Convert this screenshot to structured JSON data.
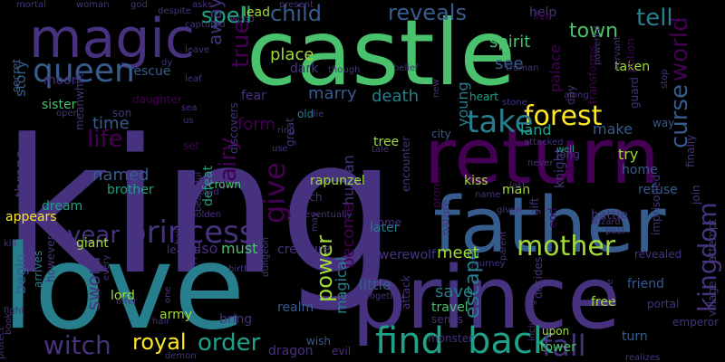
{
  "background": "#000000",
  "palette": {
    "dark_purple": "#440154",
    "indigo": "#46327e",
    "blue": "#365c8d",
    "steel": "#277f8e",
    "teal": "#1fa187",
    "green": "#4ac16d",
    "lime": "#a0da39",
    "yellow": "#fde725"
  },
  "words": [
    {
      "text": "king",
      "color": "indigo"
    },
    {
      "text": "castle",
      "color": "green"
    },
    {
      "text": "love",
      "color": "steel"
    },
    {
      "text": "prince",
      "color": "indigo"
    },
    {
      "text": "return",
      "color": "dark_purple"
    },
    {
      "text": "father",
      "color": "blue"
    },
    {
      "text": "magic",
      "color": "indigo"
    },
    {
      "text": "queen",
      "color": "blue"
    },
    {
      "text": "find",
      "color": "teal"
    },
    {
      "text": "back",
      "color": "teal"
    },
    {
      "text": "princess",
      "color": "indigo"
    },
    {
      "text": "forest",
      "color": "yellow"
    },
    {
      "text": "take",
      "color": "steel"
    },
    {
      "text": "mother",
      "color": "lime"
    },
    {
      "text": "kingdom",
      "color": "indigo"
    },
    {
      "text": "fall",
      "color": "indigo"
    },
    {
      "text": "witch",
      "color": "indigo"
    },
    {
      "text": "world",
      "color": "dark_purple"
    },
    {
      "text": "curse",
      "color": "blue"
    },
    {
      "text": "year",
      "color": "indigo"
    },
    {
      "text": "give",
      "color": "dark_purple"
    },
    {
      "text": "order",
      "color": "teal"
    },
    {
      "text": "tell",
      "color": "steel"
    },
    {
      "text": "power",
      "color": "lime"
    },
    {
      "text": "life",
      "color": "dark_purple"
    },
    {
      "text": "fairy",
      "color": "dark_purple"
    },
    {
      "text": "true",
      "color": "dark_purple"
    },
    {
      "text": "escape",
      "color": "steel"
    },
    {
      "text": "royal",
      "color": "yellow"
    },
    {
      "text": "spell",
      "color": "teal"
    },
    {
      "text": "child",
      "color": "blue"
    },
    {
      "text": "reveals",
      "color": "blue"
    },
    {
      "text": "town",
      "color": "green"
    },
    {
      "text": "sword",
      "color": "indigo"
    },
    {
      "text": "named",
      "color": "blue"
    },
    {
      "text": "time",
      "color": "blue"
    },
    {
      "text": "away",
      "color": "indigo"
    },
    {
      "text": "story",
      "color": "blue"
    },
    {
      "text": "human",
      "color": "indigo"
    },
    {
      "text": "marry",
      "color": "blue"
    },
    {
      "text": "death",
      "color": "steel"
    },
    {
      "text": "meet",
      "color": "lime"
    },
    {
      "text": "form",
      "color": "dark_purple"
    },
    {
      "text": "place",
      "color": "lime"
    },
    {
      "text": "see",
      "color": "blue"
    },
    {
      "text": "palace",
      "color": "dark_purple"
    },
    {
      "text": "young",
      "color": "steel"
    },
    {
      "text": "spirit",
      "color": "green"
    },
    {
      "text": "land",
      "color": "teal"
    },
    {
      "text": "make",
      "color": "blue"
    },
    {
      "text": "save",
      "color": "steel"
    },
    {
      "text": "become",
      "color": "dark_purple"
    },
    {
      "text": "throne",
      "color": "indigo"
    },
    {
      "text": "magical",
      "color": "steel"
    },
    {
      "text": "also",
      "color": "indigo"
    },
    {
      "text": "must",
      "color": "green"
    },
    {
      "text": "try",
      "color": "lime"
    },
    {
      "text": "refuse",
      "color": "blue"
    },
    {
      "text": "moon",
      "color": "indigo"
    },
    {
      "text": "begin",
      "color": "blue"
    },
    {
      "text": "little",
      "color": "blue"
    },
    {
      "text": "lord",
      "color": "lime"
    },
    {
      "text": "brother",
      "color": "teal"
    },
    {
      "text": "sister",
      "color": "green"
    },
    {
      "text": "help",
      "color": "indigo"
    },
    {
      "text": "rescue",
      "color": "blue"
    },
    {
      "text": "taken",
      "color": "lime"
    },
    {
      "text": "lead",
      "color": "lime"
    },
    {
      "text": "dark",
      "color": "indigo"
    },
    {
      "text": "fear",
      "color": "indigo"
    },
    {
      "text": "kiss",
      "color": "lime"
    },
    {
      "text": "tree",
      "color": "lime"
    },
    {
      "text": "city",
      "color": "blue"
    },
    {
      "text": "man",
      "color": "lime"
    },
    {
      "text": "knight",
      "color": "indigo"
    },
    {
      "text": "rapunzel",
      "color": "lime"
    },
    {
      "text": "later",
      "color": "steel"
    },
    {
      "text": "travel",
      "color": "green"
    },
    {
      "text": "crown",
      "color": "green"
    },
    {
      "text": "defeat",
      "color": "teal"
    },
    {
      "text": "discovers",
      "color": "indigo"
    },
    {
      "text": "encounter",
      "color": "indigo"
    },
    {
      "text": "promise",
      "color": "dark_purple"
    },
    {
      "text": "friend",
      "color": "blue"
    },
    {
      "text": "giant",
      "color": "lime"
    },
    {
      "text": "dream",
      "color": "teal"
    },
    {
      "text": "creature",
      "color": "indigo"
    },
    {
      "text": "werewolf",
      "color": "indigo"
    },
    {
      "text": "army",
      "color": "lime"
    },
    {
      "text": "bring",
      "color": "indigo"
    },
    {
      "text": "realm",
      "color": "blue"
    },
    {
      "text": "dragon",
      "color": "indigo"
    },
    {
      "text": "evil",
      "color": "indigo"
    },
    {
      "text": "tower",
      "color": "green"
    },
    {
      "text": "free",
      "color": "lime"
    },
    {
      "text": "turn",
      "color": "blue"
    },
    {
      "text": "battle",
      "color": "indigo"
    },
    {
      "text": "home",
      "color": "blue"
    },
    {
      "text": "learns",
      "color": "indigo"
    },
    {
      "text": "lost",
      "color": "indigo"
    },
    {
      "text": "appears",
      "color": "yellow"
    },
    {
      "text": "arrives",
      "color": "steel"
    },
    {
      "text": "however",
      "color": "indigo"
    },
    {
      "text": "meanwhile",
      "color": "indigo"
    },
    {
      "text": "secret",
      "color": "blue"
    },
    {
      "text": "son",
      "color": "indigo"
    },
    {
      "text": "daughter",
      "color": "dark_purple"
    },
    {
      "text": "heart",
      "color": "teal"
    },
    {
      "text": "attack",
      "color": "indigo"
    },
    {
      "text": "sends",
      "color": "indigo"
    },
    {
      "text": "upon",
      "color": "lime"
    },
    {
      "text": "decides",
      "color": "indigo"
    },
    {
      "text": "end",
      "color": "dark_purple"
    },
    {
      "text": "come",
      "color": "indigo"
    },
    {
      "text": "live",
      "color": "dark_purple"
    },
    {
      "text": "day",
      "color": "indigo"
    },
    {
      "text": "way",
      "color": "blue"
    },
    {
      "text": "set",
      "color": "dark_purple"
    },
    {
      "text": "old",
      "color": "steel"
    },
    {
      "text": "great",
      "color": "indigo"
    },
    {
      "text": "wish",
      "color": "blue"
    },
    {
      "text": "monster",
      "color": "indigo"
    },
    {
      "text": "imprisoned",
      "color": "indigo"
    },
    {
      "text": "village",
      "color": "indigo"
    },
    {
      "text": "transforms",
      "color": "dark_purple"
    },
    {
      "text": "attempt",
      "color": "indigo"
    },
    {
      "text": "potion",
      "color": "dark_purple"
    },
    {
      "text": "guard",
      "color": "indigo"
    },
    {
      "text": "finally",
      "color": "indigo"
    },
    {
      "text": "emperor",
      "color": "indigo"
    },
    {
      "text": "revealed",
      "color": "indigo"
    },
    {
      "text": "portal",
      "color": "indigo"
    },
    {
      "text": "join",
      "color": "indigo"
    },
    {
      "text": "nature",
      "color": "indigo"
    },
    {
      "text": "gift",
      "color": "indigo"
    },
    {
      "text": "given",
      "color": "indigo"
    },
    {
      "text": "name",
      "color": "indigo"
    },
    {
      "text": "last",
      "color": "indigo"
    },
    {
      "text": "wizard",
      "color": "indigo"
    },
    {
      "text": "realizes",
      "color": "indigo"
    },
    {
      "text": "cave",
      "color": "indigo"
    },
    {
      "text": "journey",
      "color": "indigo"
    },
    {
      "text": "including",
      "color": "indigo"
    },
    {
      "text": "parent",
      "color": "indigo"
    },
    {
      "text": "past",
      "color": "indigo"
    },
    {
      "text": "attacked",
      "color": "indigo"
    },
    {
      "text": "long",
      "color": "indigo"
    },
    {
      "text": "well",
      "color": "teal"
    },
    {
      "text": "never",
      "color": "indigo"
    },
    {
      "text": "tale",
      "color": "indigo"
    },
    {
      "text": "along",
      "color": "indigo"
    },
    {
      "text": "stone",
      "color": "indigo"
    },
    {
      "text": "new",
      "color": "indigo"
    },
    {
      "text": "die",
      "color": "indigo"
    },
    {
      "text": "ring",
      "color": "indigo"
    },
    {
      "text": "use",
      "color": "indigo"
    },
    {
      "text": "much",
      "color": "indigo"
    },
    {
      "text": "lady",
      "color": "indigo"
    },
    {
      "text": "may",
      "color": "indigo"
    },
    {
      "text": "eventually",
      "color": "indigo"
    },
    {
      "text": "together",
      "color": "indigo"
    },
    {
      "text": "dungeon",
      "color": "indigo"
    },
    {
      "text": "birth",
      "color": "indigo"
    },
    {
      "text": "golden",
      "color": "indigo"
    },
    {
      "text": "beautiful",
      "color": "indigo"
    },
    {
      "text": "would",
      "color": "indigo"
    },
    {
      "text": "hall",
      "color": "indigo"
    },
    {
      "text": "every",
      "color": "indigo"
    },
    {
      "text": "offer",
      "color": "indigo"
    },
    {
      "text": "one",
      "color": "indigo"
    },
    {
      "text": "hair",
      "color": "indigo"
    },
    {
      "text": "demon",
      "color": "indigo"
    },
    {
      "text": "protect",
      "color": "indigo"
    },
    {
      "text": "fight",
      "color": "indigo"
    },
    {
      "text": "kill",
      "color": "indigo"
    },
    {
      "text": "book",
      "color": "indigo"
    },
    {
      "text": "open",
      "color": "indigo"
    },
    {
      "text": "dy",
      "color": "indigo"
    },
    {
      "text": "leaf",
      "color": "indigo"
    },
    {
      "text": "sea",
      "color": "indigo"
    },
    {
      "text": "us",
      "color": "indigo"
    },
    {
      "text": "leave",
      "color": "indigo"
    },
    {
      "text": "captured",
      "color": "indigo"
    },
    {
      "text": "despite",
      "color": "indigo"
    },
    {
      "text": "mortal",
      "color": "indigo"
    },
    {
      "text": "woman",
      "color": "indigo"
    },
    {
      "text": "god",
      "color": "indigo"
    },
    {
      "text": "asks",
      "color": "indigo"
    },
    {
      "text": "wood",
      "color": "indigo"
    },
    {
      "text": "present",
      "color": "indigo"
    },
    {
      "text": "though",
      "color": "indigo"
    },
    {
      "text": "belief",
      "color": "indigo"
    },
    {
      "text": "truman",
      "color": "indigo"
    },
    {
      "text": "servant",
      "color": "indigo"
    },
    {
      "text": "powerful",
      "color": "indigo"
    },
    {
      "text": "stop",
      "color": "indigo"
    }
  ]
}
